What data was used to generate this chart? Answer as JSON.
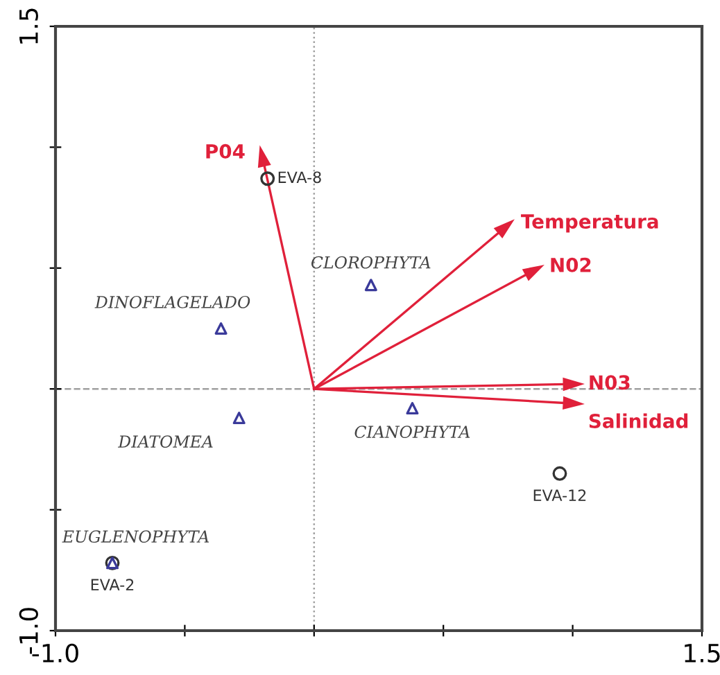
{
  "chart_data": {
    "type": "scatter",
    "xlim": [
      -1.0,
      1.5
    ],
    "ylim": [
      -1.0,
      1.5
    ],
    "xticks": [
      {
        "value": -1.0,
        "label": "-1.0"
      },
      {
        "value": -0.5,
        "label": null
      },
      {
        "value": 0,
        "label": null
      },
      {
        "value": 0.5,
        "label": null
      },
      {
        "value": 1.0,
        "label": null
      },
      {
        "value": 1.5,
        "label": "1.5"
      }
    ],
    "yticks": [
      {
        "value": -1.0,
        "label": "-1.0"
      },
      {
        "value": -0.5,
        "label": null
      },
      {
        "value": 0,
        "label": null
      },
      {
        "value": 0.5,
        "label": null
      },
      {
        "value": 1.0,
        "label": null
      },
      {
        "value": 1.5,
        "label": "1.5"
      }
    ],
    "grid": false,
    "legend": "right",
    "ref_lines": [
      {
        "axis": "x",
        "value": 0,
        "color": "#a0a0a0",
        "line_style": "dotted"
      },
      {
        "axis": "y",
        "value": 0,
        "color": "#a0a0a0",
        "line_style": "dashed"
      }
    ],
    "series": [
      {
        "marker": "circle",
        "color": "#333333",
        "x": [
          -0.18,
          0.95,
          -0.78
        ],
        "values": [
          0.87,
          -0.35,
          -0.72
        ]
      },
      {
        "marker": "triangle",
        "color": "#3a3a9a",
        "x": [
          0.22,
          -0.36,
          -0.29,
          0.38,
          -0.78
        ],
        "values": [
          0.43,
          0.25,
          -0.12,
          -0.08,
          -0.72
        ]
      },
      {
        "type": "line",
        "name": "P04",
        "color": "#e0203a",
        "x": [
          0,
          -0.2
        ],
        "values": [
          0,
          0.96
        ]
      },
      {
        "type": "line",
        "name": "Temperatura",
        "color": "#e0203a",
        "x": [
          0,
          0.74
        ],
        "values": [
          0,
          0.67
        ]
      },
      {
        "type": "line",
        "name": "N02",
        "color": "#e0203a",
        "x": [
          0,
          0.85
        ],
        "values": [
          0,
          0.49
        ]
      },
      {
        "type": "line",
        "name": "N03",
        "color": "#e0203a",
        "x": [
          0,
          1.0
        ],
        "values": [
          0,
          0.02
        ]
      },
      {
        "type": "line",
        "name": "Salinidad",
        "color": "#e0203a",
        "x": [
          0,
          1.0
        ],
        "values": [
          0,
          -0.06
        ]
      }
    ],
    "annotations": [
      {
        "text": "EVA-8",
        "x": -0.18,
        "y": 0.87
      },
      {
        "text": "EVA-12",
        "x": 0.95,
        "y": -0.35
      },
      {
        "text": "EVA-2",
        "x": -0.78,
        "y": -0.72
      },
      {
        "text": "CLOROPHYTA",
        "x": 0.22,
        "y": 0.43
      },
      {
        "text": "DINOFLAGELADO",
        "x": -0.36,
        "y": 0.25
      },
      {
        "text": "DIATOMEA",
        "x": -0.29,
        "y": -0.12
      },
      {
        "text": "CIANOPHYTA",
        "x": 0.38,
        "y": -0.08
      },
      {
        "text": "EUGLENOPHYTA",
        "x": -0.78,
        "y": -0.72
      }
    ]
  }
}
